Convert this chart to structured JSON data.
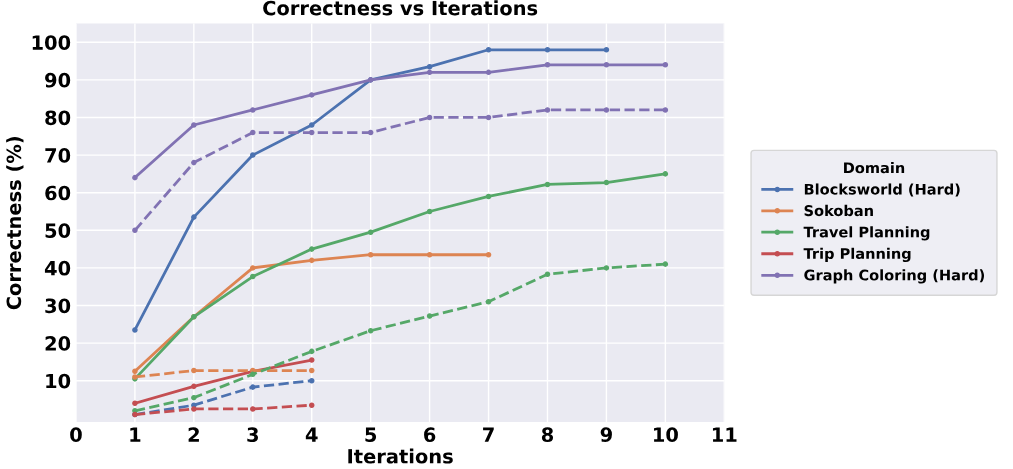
{
  "chart_data": {
    "type": "line",
    "title": "Correctness vs Iterations",
    "xlabel": "Iterations",
    "ylabel": "Correctness (%)",
    "legend_title": "Domain",
    "xlim": [
      0,
      11
    ],
    "xticks": [
      0,
      1,
      2,
      3,
      4,
      5,
      6,
      7,
      8,
      9,
      10,
      11
    ],
    "ylim": [
      -1,
      105
    ],
    "yticks": [
      10,
      20,
      30,
      40,
      50,
      60,
      70,
      80,
      90,
      100
    ],
    "grid": true,
    "legend": "right",
    "marker": "circle",
    "series": [
      {
        "name": "Blocksworld (Hard)",
        "color": "#4c72b0",
        "line_style": "solid",
        "x": [
          1,
          2,
          3,
          4,
          5,
          6,
          7,
          8,
          9
        ],
        "values": [
          23.5,
          53.5,
          70,
          78,
          90,
          93.5,
          98,
          98,
          98
        ]
      },
      {
        "name": "Sokoban",
        "color": "#dd8452",
        "line_style": "solid",
        "x": [
          1,
          2,
          3,
          4,
          5,
          6,
          7
        ],
        "values": [
          12.5,
          27,
          40,
          42,
          43.5,
          43.5,
          43.5
        ]
      },
      {
        "name": "Travel Planning",
        "color": "#55a868",
        "line_style": "solid",
        "x": [
          1,
          2,
          3,
          4,
          5,
          6,
          7,
          8,
          9,
          10
        ],
        "values": [
          10.5,
          27,
          37.7,
          45,
          49.5,
          55,
          59,
          62.2,
          62.7,
          65
        ]
      },
      {
        "name": "Trip Planning",
        "color": "#c44e52",
        "line_style": "solid",
        "x": [
          1,
          2,
          3,
          4
        ],
        "values": [
          4,
          8.5,
          12.5,
          15.5
        ]
      },
      {
        "name": "Graph Coloring (Hard)",
        "color": "#8172b3",
        "line_style": "solid",
        "x": [
          1,
          2,
          3,
          4,
          5,
          6,
          7,
          8,
          9,
          10
        ],
        "values": [
          64,
          78,
          82,
          86,
          90,
          92,
          92,
          94,
          94,
          94
        ]
      },
      {
        "color": "#4c72b0",
        "line_style": "dashed",
        "x": [
          1,
          2,
          3,
          4
        ],
        "values": [
          1,
          3.5,
          8.3,
          10
        ]
      },
      {
        "color": "#dd8452",
        "line_style": "dashed",
        "x": [
          1,
          2,
          3,
          4
        ],
        "values": [
          11,
          12.7,
          12.7,
          12.7
        ]
      },
      {
        "color": "#55a868",
        "line_style": "dashed",
        "x": [
          1,
          2,
          3,
          4,
          5,
          6,
          7,
          8,
          9,
          10
        ],
        "values": [
          2,
          5.5,
          11.7,
          17.8,
          23.3,
          27.2,
          31,
          38.3,
          40,
          41
        ]
      },
      {
        "color": "#c44e52",
        "line_style": "dashed",
        "x": [
          1,
          2,
          3,
          4
        ],
        "values": [
          1,
          2.5,
          2.5,
          3.5
        ]
      },
      {
        "color": "#8172b3",
        "line_style": "dashed",
        "x": [
          1,
          2,
          3,
          4,
          5,
          6,
          7,
          8,
          9,
          10
        ],
        "values": [
          50,
          68,
          76,
          76,
          76,
          80,
          80,
          82,
          82,
          82
        ]
      }
    ]
  }
}
